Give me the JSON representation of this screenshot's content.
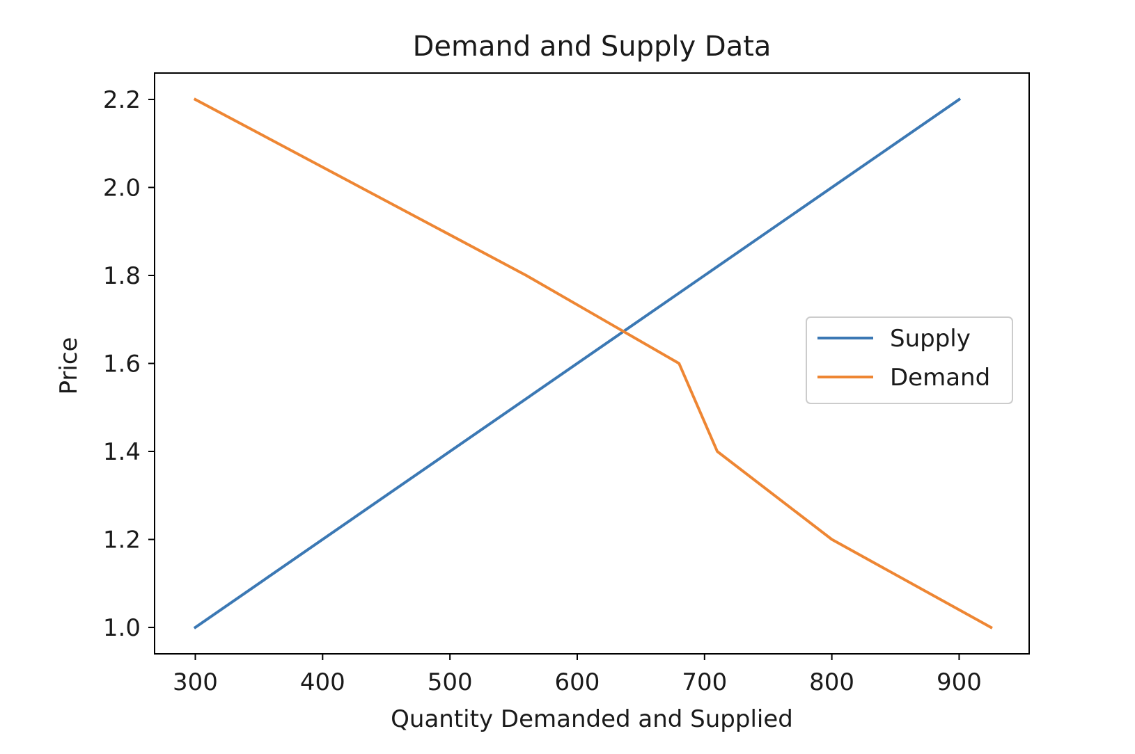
{
  "chart_data": {
    "type": "line",
    "title": "Demand and Supply Data",
    "xlabel": "Quantity Demanded and Supplied",
    "ylabel": "Price",
    "xlim": [
      268,
      955
    ],
    "ylim": [
      0.94,
      2.26
    ],
    "xticks": [
      300,
      400,
      500,
      600,
      700,
      800,
      900
    ],
    "yticks": [
      1.0,
      1.2,
      1.4,
      1.6,
      1.8,
      2.0,
      2.2
    ],
    "xtick_labels": [
      "300",
      "400",
      "500",
      "600",
      "700",
      "800",
      "900"
    ],
    "ytick_labels": [
      "1.0",
      "1.2",
      "1.4",
      "1.6",
      "1.8",
      "2.0",
      "2.2"
    ],
    "grid": false,
    "legend_position": "center-right",
    "series": [
      {
        "name": "Supply",
        "color": "#3b78b4",
        "x": [
          300,
          900
        ],
        "y": [
          1.0,
          2.2
        ]
      },
      {
        "name": "Demand",
        "color": "#ee8633",
        "x": [
          300,
          560,
          680,
          710,
          800,
          925
        ],
        "y": [
          2.2,
          1.8,
          1.6,
          1.4,
          1.2,
          1.0
        ]
      }
    ]
  }
}
